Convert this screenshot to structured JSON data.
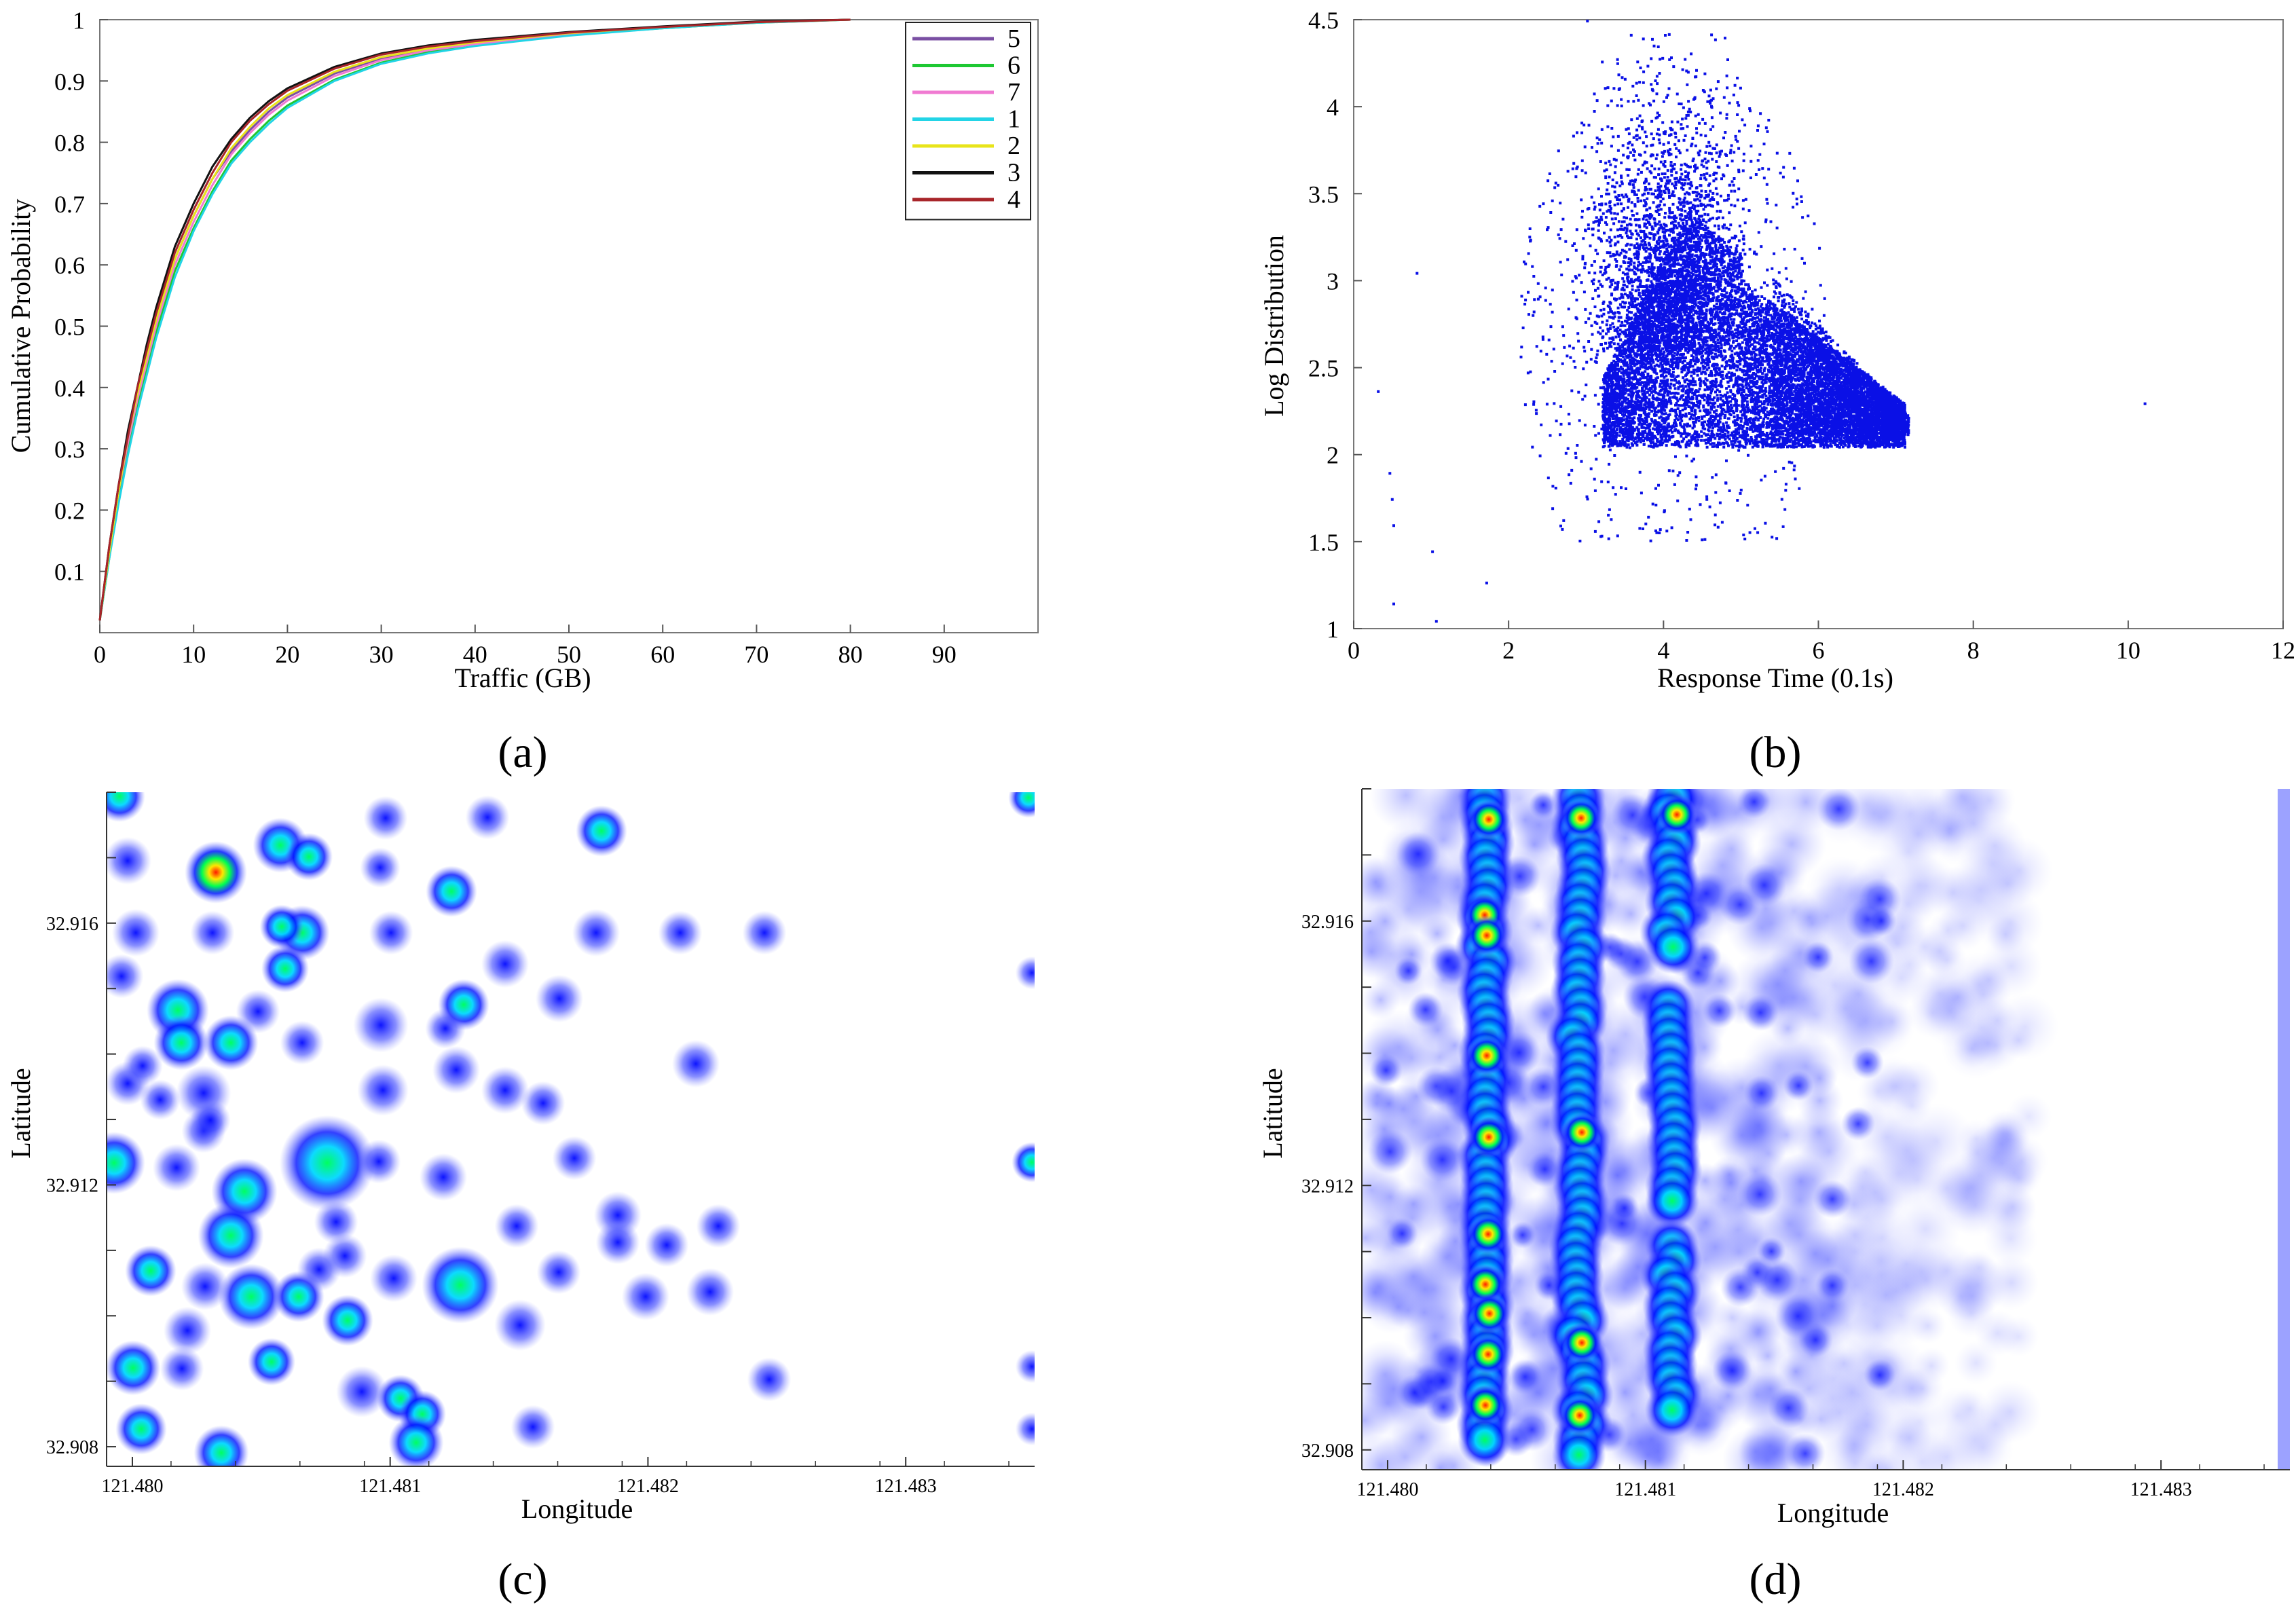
{
  "chart_data": [
    {
      "type": "line",
      "panel_label": "(a)",
      "xlabel": "Traffic (GB)",
      "ylabel": "Cumulative Probability",
      "xlim": [
        0,
        100
      ],
      "ylim": [
        0,
        1
      ],
      "x_ticks": [
        0,
        10,
        20,
        30,
        40,
        50,
        60,
        70,
        80,
        90
      ],
      "y_ticks": [
        0.1,
        0.2,
        0.3,
        0.4,
        0.5,
        0.6,
        0.7,
        0.8,
        0.9,
        1
      ],
      "x_tick_labels": [
        "0",
        "10",
        "20",
        "30",
        "40",
        "50",
        "60",
        "70",
        "80",
        "90"
      ],
      "y_tick_labels": [
        "0.1",
        "0.2",
        "0.3",
        "0.4",
        "0.5",
        "0.6",
        "0.7",
        "0.8",
        "0.9",
        "1"
      ],
      "legend_position": "top-right",
      "x": [
        0,
        1,
        2,
        3,
        4,
        5,
        6,
        7,
        8,
        10,
        12,
        14,
        16,
        18,
        20,
        25,
        30,
        35,
        40,
        50,
        60,
        70,
        80
      ],
      "series": [
        {
          "name": "5",
          "color": "#7a4fa3",
          "values": [
            0.02,
            0.13,
            0.23,
            0.31,
            0.39,
            0.45,
            0.51,
            0.56,
            0.61,
            0.68,
            0.74,
            0.785,
            0.82,
            0.85,
            0.873,
            0.912,
            0.937,
            0.952,
            0.962,
            0.977,
            0.987,
            0.996,
            1.0
          ]
        },
        {
          "name": "6",
          "color": "#1ec832",
          "values": [
            0.02,
            0.12,
            0.22,
            0.3,
            0.37,
            0.43,
            0.49,
            0.54,
            0.59,
            0.66,
            0.72,
            0.77,
            0.805,
            0.835,
            0.86,
            0.902,
            0.93,
            0.947,
            0.958,
            0.975,
            0.986,
            0.995,
            1.0
          ]
        },
        {
          "name": "7",
          "color": "#f07ad2",
          "values": [
            0.02,
            0.13,
            0.23,
            0.31,
            0.38,
            0.44,
            0.5,
            0.55,
            0.6,
            0.67,
            0.73,
            0.78,
            0.815,
            0.845,
            0.868,
            0.908,
            0.934,
            0.95,
            0.96,
            0.976,
            0.987,
            0.996,
            1.0
          ]
        },
        {
          "name": "1",
          "color": "#22d4e6",
          "values": [
            0.02,
            0.12,
            0.21,
            0.29,
            0.36,
            0.42,
            0.48,
            0.53,
            0.58,
            0.655,
            0.715,
            0.765,
            0.8,
            0.83,
            0.856,
            0.9,
            0.928,
            0.945,
            0.957,
            0.974,
            0.986,
            0.995,
            1.0
          ]
        },
        {
          "name": "2",
          "color": "#e8e41a",
          "values": [
            0.02,
            0.13,
            0.23,
            0.32,
            0.39,
            0.45,
            0.51,
            0.56,
            0.61,
            0.68,
            0.74,
            0.79,
            0.825,
            0.855,
            0.877,
            0.915,
            0.939,
            0.953,
            0.963,
            0.978,
            0.988,
            0.996,
            1.0
          ]
        },
        {
          "name": "3",
          "color": "#111111",
          "values": [
            0.02,
            0.14,
            0.24,
            0.33,
            0.4,
            0.47,
            0.53,
            0.58,
            0.63,
            0.7,
            0.76,
            0.805,
            0.84,
            0.867,
            0.888,
            0.923,
            0.945,
            0.958,
            0.967,
            0.98,
            0.989,
            0.997,
            1.0
          ]
        },
        {
          "name": "4",
          "color": "#a8252a",
          "values": [
            0.02,
            0.14,
            0.24,
            0.32,
            0.4,
            0.46,
            0.52,
            0.57,
            0.62,
            0.69,
            0.75,
            0.8,
            0.835,
            0.862,
            0.884,
            0.92,
            0.943,
            0.956,
            0.965,
            0.979,
            0.988,
            0.996,
            1.0
          ]
        }
      ]
    },
    {
      "type": "scatter",
      "panel_label": "(b)",
      "xlabel": "Response Time (0.1s)",
      "ylabel": "Log Distribution",
      "xlim": [
        0,
        12
      ],
      "ylim": [
        1,
        4.5
      ],
      "x_ticks": [
        0,
        2,
        4,
        6,
        8,
        10,
        12
      ],
      "y_ticks": [
        1,
        1.5,
        2,
        2.5,
        3,
        3.5,
        4,
        4.5
      ],
      "x_tick_labels": [
        "0",
        "2",
        "4",
        "6",
        "8",
        "10",
        "12"
      ],
      "y_tick_labels": [
        "1",
        "1.5",
        "2",
        "2.5",
        "3",
        "3.5",
        "4",
        "4.5"
      ],
      "color": "#0a10e6",
      "description_points": {
        "outliers": [
          [
            0.3,
            2.37
          ],
          [
            0.45,
            1.9
          ],
          [
            0.5,
            1.15
          ],
          [
            0.48,
            1.75
          ],
          [
            0.5,
            1.6
          ],
          [
            1.05,
            1.05
          ],
          [
            1.0,
            1.45
          ],
          [
            10.2,
            2.3
          ],
          [
            0.8,
            3.05
          ],
          [
            1.7,
            1.27
          ]
        ],
        "peak": [
          3.0,
          4.5
        ]
      }
    },
    {
      "type": "heatmap",
      "panel_label": "(c)",
      "xlabel": "Longitude",
      "ylabel": "Latitude",
      "xlim": [
        121.4799,
        121.4835
      ],
      "ylim": [
        32.9077,
        32.918
      ],
      "x_ticks": [
        121.48,
        121.481,
        121.482,
        121.483
      ],
      "y_ticks": [
        32.908,
        32.912,
        32.916
      ],
      "x_tick_labels": [
        "121.480",
        "121.481",
        "121.482",
        "121.483"
      ],
      "y_tick_labels": [
        "32.908",
        "32.912",
        "32.916"
      ],
      "colormap": [
        "#ffffff",
        "#0000ff",
        "#00e0ff",
        "#00ff40",
        "#ffff00",
        "#ff0000"
      ]
    },
    {
      "type": "heatmap",
      "panel_label": "(d)",
      "xlabel": "Longitude",
      "ylabel": "Latitude",
      "xlim": [
        121.4799,
        121.4835
      ],
      "ylim": [
        32.9077,
        32.918
      ],
      "x_ticks": [
        121.48,
        121.481,
        121.482,
        121.483
      ],
      "y_ticks": [
        32.908,
        32.912,
        32.916
      ],
      "x_tick_labels": [
        "121.480",
        "121.481",
        "121.482",
        "121.483"
      ],
      "y_tick_labels": [
        "32.908",
        "32.912",
        "32.916"
      ],
      "colormap": [
        "#ffffff",
        "#0000ff",
        "#00e0ff",
        "#00ff40",
        "#ffff00",
        "#ff0000"
      ]
    }
  ]
}
